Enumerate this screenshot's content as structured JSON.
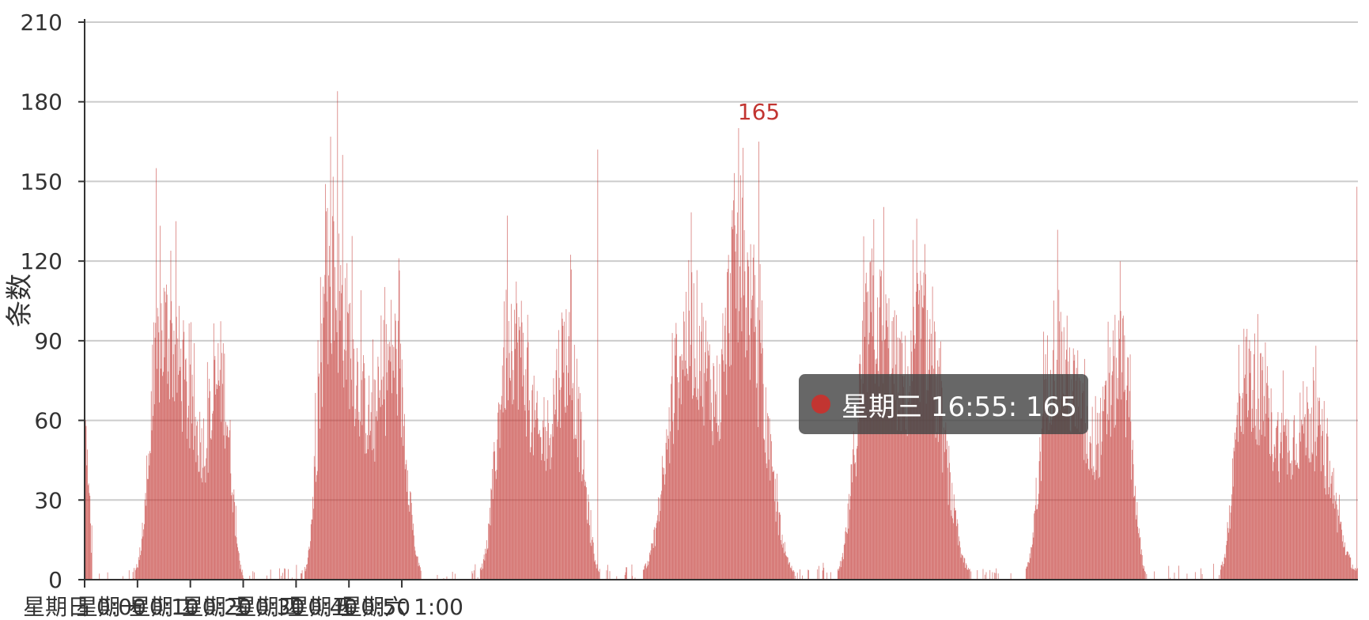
{
  "chart_data": {
    "type": "bar",
    "ylabel": "条数",
    "ylim": [
      0,
      210
    ],
    "yticks": [
      "0",
      "30",
      "60",
      "90",
      "120",
      "150",
      "180",
      "210"
    ],
    "xtick_labels": [
      "星期日 0:00",
      "星期一 0:10",
      "星期二 0:20",
      "星期三 0:30",
      "星期四 0:40",
      "星期五 0:50",
      "星期六 1:00"
    ],
    "grid": true,
    "bar_color": "#c23531",
    "days": [
      "星期日",
      "星期一",
      "星期二",
      "星期三",
      "星期四",
      "星期五",
      "星期六"
    ],
    "bins_per_day": 288,
    "profile_note": "approximate envelope per day: [day, rise_bin, peak1_bin, peak1_value, dip_bin, dip_value, peak2_bin, peak2_value, fall_bin]",
    "daily_profiles": [
      [
        0,
        80,
        125,
        110,
        190,
        60,
        215,
        90,
        250
      ],
      [
        1,
        60,
        100,
        130,
        170,
        70,
        200,
        100,
        245
      ],
      [
        2,
        50,
        100,
        110,
        150,
        60,
        185,
        100,
        240
      ],
      [
        3,
        20,
        95,
        110,
        140,
        80,
        165,
        140,
        260
      ],
      [
        4,
        40,
        95,
        115,
        150,
        85,
        170,
        110,
        250
      ],
      [
        5,
        50,
        95,
        100,
        160,
        60,
        200,
        95,
        240
      ],
      [
        6,
        70,
        110,
        90,
        170,
        60,
        210,
        70,
        288
      ]
    ],
    "spikes": [
      {
        "day": "星期日",
        "time": "09:25",
        "value": 155
      },
      {
        "day": "星期一",
        "time": "09:20",
        "value": 184
      },
      {
        "day": "星期一",
        "time": "10:00",
        "value": 160
      },
      {
        "day": "星期二",
        "time": "19:40",
        "value": 162
      },
      {
        "day": "星期三",
        "time": "16:55",
        "value": 165
      },
      {
        "day": "星期六",
        "time": "23:50",
        "value": 148
      }
    ],
    "peak_label": "165",
    "tooltip": {
      "day": "星期三",
      "time": "16:55",
      "value": 165,
      "text": "星期三 16:55: 165"
    }
  }
}
